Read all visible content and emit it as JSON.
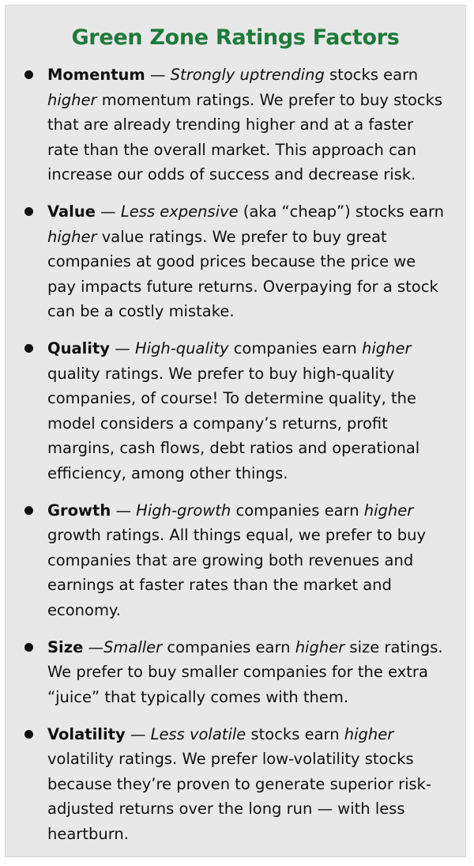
{
  "title": "Green Zone Ratings Factors",
  "colors": {
    "title": "#1f7a3a",
    "panel_background": "#e8e8e8",
    "text": "#111111"
  },
  "factors": [
    {
      "name": "Momentum",
      "dash": " — ",
      "lead_em": "Strongly uptrending",
      "mid": " stocks earn ",
      "second_em": "higher",
      "rest": " momentum ratings. We prefer to buy stocks that are already trending higher and at a faster rate than the overall market. This approach can increase our odds of success and decrease risk."
    },
    {
      "name": "Value",
      "dash": " — ",
      "lead_em": "Less expensive",
      "mid": " (aka “cheap”) stocks earn ",
      "second_em": "higher",
      "rest": " value ratings. We prefer to buy great companies at good prices because the price we pay impacts future returns. Overpaying for a stock can be a costly mistake."
    },
    {
      "name": "Quality",
      "dash": " — ",
      "lead_em": "High-quality",
      "mid": " companies earn ",
      "second_em": "higher",
      "rest": " quality ratings. We prefer to buy high-quality companies, of course! To determine quality, the model considers a company’s returns, profit margins, cash flows, debt ratios and operational efficiency, among other things."
    },
    {
      "name": "Growth",
      "dash": " — ",
      "lead_em": "High-growth",
      "mid": " companies earn ",
      "second_em": "higher",
      "rest": " growth ratings. All things equal, we prefer to buy companies that are growing both revenues and earnings at faster rates than the market and economy."
    },
    {
      "name": "Size",
      "dash": " —",
      "lead_em": "Smaller",
      "mid": " companies earn ",
      "second_em": "higher",
      "rest": " size ratings. We prefer to buy smaller companies for the extra “juice” that typically comes with them."
    },
    {
      "name": "Volatility",
      "dash": " — ",
      "lead_em": "Less volatile",
      "mid": " stocks earn ",
      "second_em": "higher",
      "rest": " volatility ratings. We prefer low-volatility stocks because they’re proven to generate superior risk-adjusted returns over the long run — with less heartburn."
    }
  ]
}
